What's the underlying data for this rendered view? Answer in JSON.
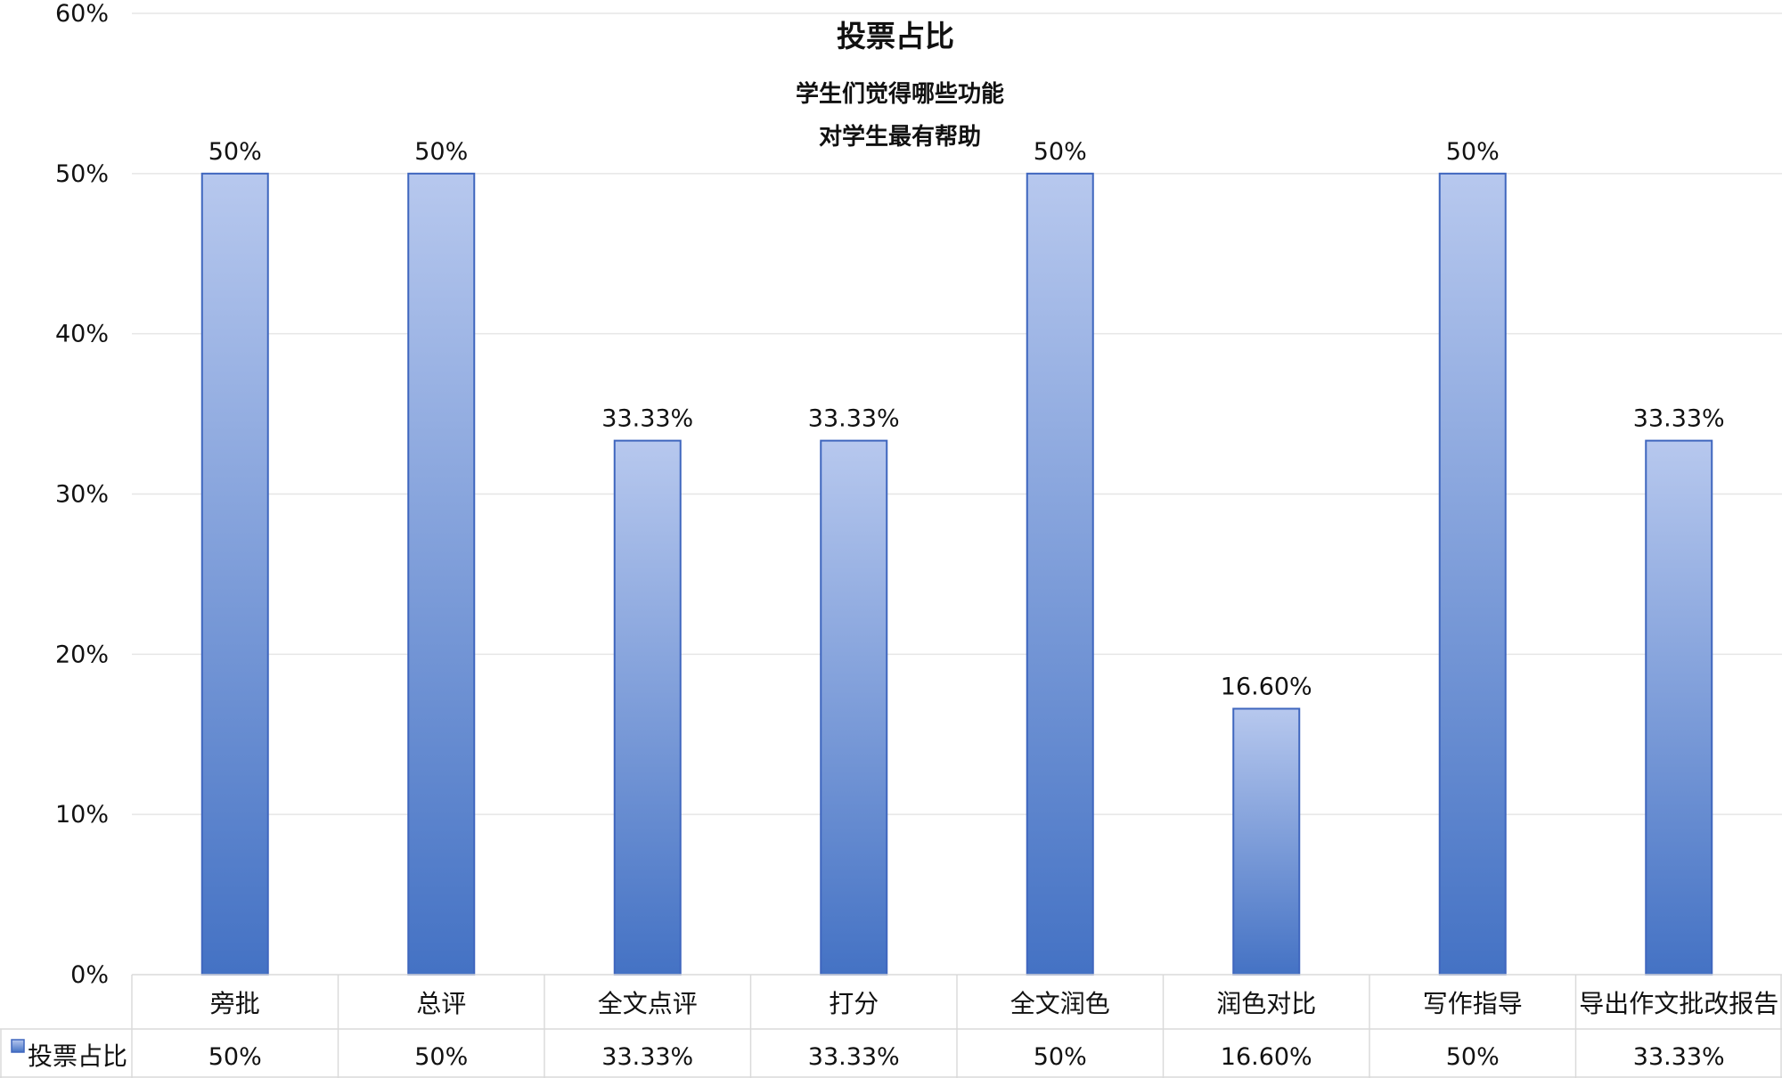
{
  "chart_data": {
    "type": "bar",
    "title": "投票占比",
    "subtitle_lines": [
      "学生们觉得哪些功能",
      "对学生最有帮助"
    ],
    "categories": [
      "旁批",
      "总评",
      "全文点评",
      "打分",
      "全文润色",
      "润色对比",
      "写作指导",
      "导出作文批改报告"
    ],
    "series": [
      {
        "name": "投票占比",
        "values": [
          50,
          50,
          33.33,
          33.33,
          50,
          16.6,
          50,
          33.33
        ],
        "labels": [
          "50%",
          "50%",
          "33.33%",
          "33.33%",
          "50%",
          "16.60%",
          "50%",
          "33.33%"
        ]
      }
    ],
    "y_ticks": [
      "0%",
      "10%",
      "20%",
      "30%",
      "40%",
      "50%",
      "60%"
    ],
    "ylim": [
      0,
      60
    ],
    "grid": true,
    "legend": "data-table-left",
    "colors": {
      "bar_top": "#B7C8EE",
      "bar_bottom": "#4472C4",
      "bar_edge": "#3F66BE",
      "grid": "#E6E6E6",
      "table_border": "#DADADA"
    }
  }
}
